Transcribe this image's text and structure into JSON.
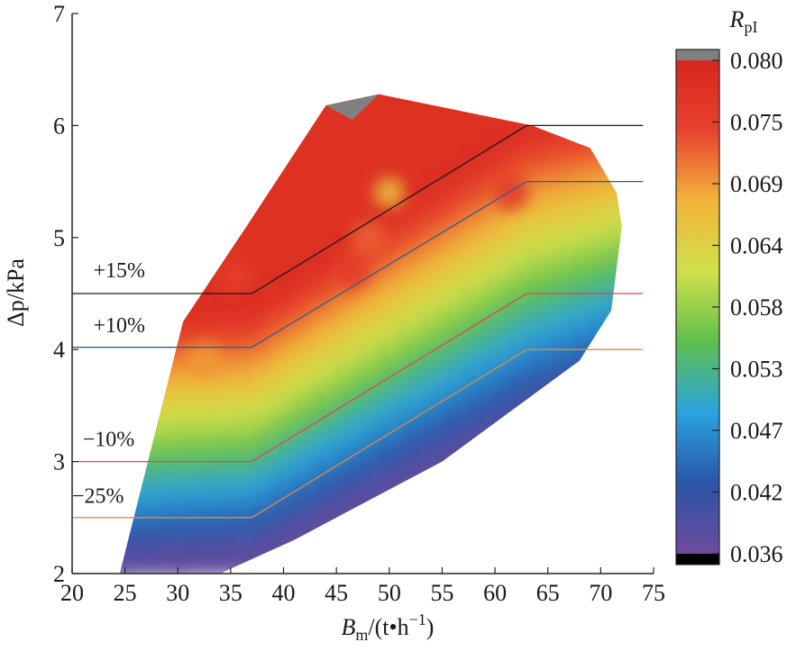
{
  "chart_data": {
    "type": "heatmap",
    "xlabel": {
      "main": "B",
      "sub": "m",
      "rest": "/(t•h",
      "sup": "−1",
      "close": ")"
    },
    "ylabel": "Δp/kPa",
    "xlim": [
      20,
      75
    ],
    "ylim": [
      2,
      7
    ],
    "xticks": [
      20,
      25,
      30,
      35,
      40,
      45,
      50,
      55,
      60,
      65,
      70,
      75
    ],
    "yticks": [
      2,
      3,
      4,
      5,
      6,
      7
    ],
    "colorbar": {
      "title_main": "R",
      "title_sub": "pI",
      "ticks": [
        "0.080",
        "0.075",
        "0.069",
        "0.064",
        "0.058",
        "0.053",
        "0.047",
        "0.042",
        "0.036"
      ],
      "range": [
        0.036,
        0.08
      ],
      "colors": [
        "#6f4a9c",
        "#2a55a8",
        "#2aa3df",
        "#5fbf4e",
        "#cfe04a",
        "#f2b53a",
        "#e8432e",
        "#d7271f"
      ]
    },
    "data_region": [
      [
        24.5,
        2.0
      ],
      [
        30.5,
        4.25
      ],
      [
        36.5,
        5.1
      ],
      [
        44,
        6.18
      ],
      [
        49,
        6.28
      ],
      [
        63.5,
        6.0
      ],
      [
        69,
        5.8
      ],
      [
        71.5,
        5.4
      ],
      [
        72,
        5.1
      ],
      [
        71,
        4.35
      ],
      [
        68,
        3.9
      ],
      [
        55,
        3.0
      ],
      [
        41,
        2.3
      ],
      [
        34,
        2.0
      ]
    ],
    "field": {
      "low_edge": [
        [
          20,
          2.0
        ],
        [
          37,
          2.1
        ],
        [
          63,
          3.3
        ],
        [
          75,
          3.8
        ]
      ],
      "high_edge": [
        [
          20,
          4.35
        ],
        [
          37,
          4.45
        ],
        [
          63,
          6.1
        ],
        [
          75,
          6.3
        ]
      ],
      "hot_spots": [
        {
          "x": 35.5,
          "y": 4.65,
          "value": 0.075
        },
        {
          "x": 46.5,
          "y": 4.7,
          "value": 0.075
        },
        {
          "x": 61.5,
          "y": 5.4,
          "value": 0.076
        },
        {
          "x": 32.5,
          "y": 3.9,
          "value": 0.069
        },
        {
          "x": 48,
          "y": 5.0,
          "value": 0.072
        }
      ],
      "cool_spots": [
        {
          "x": 31,
          "y": 5.0,
          "value": 0.066
        },
        {
          "x": 50,
          "y": 5.4,
          "value": 0.066
        }
      ],
      "saturated_top": [
        [
          44,
          6.18
        ],
        [
          49,
          6.28
        ],
        [
          46.5,
          6.05
        ]
      ],
      "saturated_bottom": [
        [
          34,
          2.0
        ],
        [
          36,
          2.08
        ],
        [
          37.5,
          2.0
        ]
      ]
    },
    "series": [
      {
        "name": "+15%",
        "color": "#1a1a1a",
        "x": [
          20,
          37,
          63,
          74
        ],
        "y": [
          4.5,
          4.5,
          6.0,
          6.0
        ]
      },
      {
        "name": "+10%",
        "color": "#2c5e8c",
        "x": [
          20,
          37,
          63,
          74
        ],
        "y": [
          4.02,
          4.02,
          5.5,
          5.5
        ]
      },
      {
        "name": "−10%",
        "color": "#d9484a",
        "x": [
          20,
          37,
          63,
          74
        ],
        "y": [
          3.0,
          3.0,
          4.5,
          4.5
        ]
      },
      {
        "name": "−25%",
        "color": "#e3884a",
        "x": [
          20,
          37,
          63,
          74
        ],
        "y": [
          2.5,
          2.5,
          4.0,
          4.0
        ]
      }
    ]
  }
}
